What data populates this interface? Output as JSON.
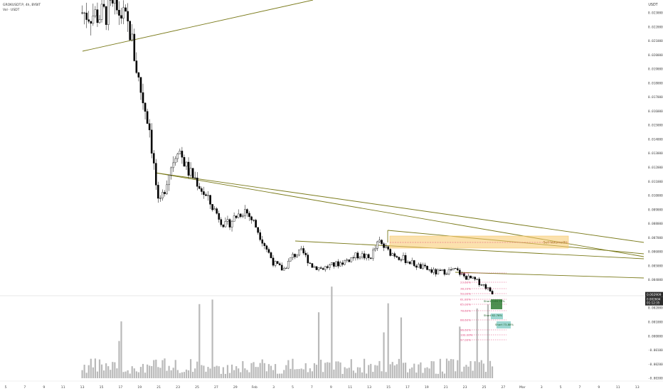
{
  "header": {
    "symbol_line": "GROKUSDT.P, 4h, BYBIT",
    "volume_line": "Vol · USDT"
  },
  "axis": {
    "currency_label": "USDT",
    "price_ticks": [
      "0.023000",
      "0.022000",
      "0.021000",
      "0.020000",
      "0.019000",
      "0.018000",
      "0.017000",
      "0.016000",
      "0.015000",
      "0.014000",
      "0.013000",
      "0.012000",
      "0.011000",
      "0.010000",
      "0.009000",
      "0.008000",
      "0.007000",
      "0.006000",
      "0.005000",
      "0.004000",
      "0.003000",
      "0.002000",
      "0.001000",
      "0.000000",
      "-0.001000",
      "-0.002000",
      "-0.003000"
    ],
    "date_ticks": [
      "5",
      "7",
      "9",
      "11",
      "13",
      "15",
      "17",
      "19",
      "21",
      "23",
      "25",
      "27",
      "29",
      "Feb",
      "3",
      "5",
      "7",
      "9",
      "11",
      "13",
      "15",
      "17",
      "19",
      "21",
      "23",
      "25",
      "27",
      "Mar",
      "3",
      "5",
      "7",
      "9",
      "11",
      "13"
    ],
    "last_price": "0.002909",
    "last_price_sub": "0.002604",
    "last_price_time": "01:12:35"
  },
  "colors": {
    "trendline": "#7a7a1a",
    "candle": "#000000",
    "volume": "#b9b9b9",
    "fib": "#e0457b",
    "box": "#f7c96a",
    "box_label": "#a0781a",
    "target_dark": "#2e7d32",
    "target_light": "#4db6ac"
  },
  "fib_levels": [
    "0.00%",
    "23.60%",
    "38.20%",
    "50.00%",
    "61.80%",
    "65.00%",
    "78.60%",
    "88.60%",
    "96.60%",
    "100.00%",
    "97.00%"
  ],
  "sell_box_label": "Sell Volume(5)",
  "targets": [
    "Short 0-60.78%",
    "Short 62-76%",
    "Short 73-88%"
  ],
  "chart_data": {
    "type": "candlestick",
    "title": "GROKUSDT.P, 4h, BYBIT",
    "ylabel": "USDT",
    "ylim": [
      -0.003,
      0.0235
    ],
    "close_path": {
      "x_dates": [
        "Jan 13",
        "Jan 15",
        "Jan 16",
        "Jan 17",
        "Jan 18",
        "Jan 19",
        "Jan 20",
        "Jan 21",
        "Jan 22",
        "Jan 23",
        "Jan 24",
        "Jan 25",
        "Jan 26",
        "Jan 27",
        "Jan 28",
        "Jan 29",
        "Jan 30",
        "Jan 31",
        "Feb 1",
        "Feb 2",
        "Feb 3",
        "Feb 4",
        "Feb 5",
        "Feb 6",
        "Feb 7",
        "Feb 9",
        "Feb 11",
        "Feb 12",
        "Feb 13",
        "Feb 14",
        "Feb 15",
        "Feb 17",
        "Feb 19",
        "Feb 21",
        "Feb 22",
        "Feb 23",
        "Feb 24",
        "Feb 25"
      ],
      "y": [
        0.023,
        0.0228,
        0.0232,
        0.023,
        0.0217,
        0.0178,
        0.015,
        0.009,
        0.0115,
        0.0135,
        0.0118,
        0.011,
        0.0098,
        0.0088,
        0.0078,
        0.0085,
        0.009,
        0.008,
        0.0066,
        0.0052,
        0.0047,
        0.0057,
        0.006,
        0.005,
        0.0048,
        0.0052,
        0.0058,
        0.0055,
        0.0067,
        0.006,
        0.0057,
        0.005,
        0.0045,
        0.0047,
        0.0042,
        0.004,
        0.0036,
        0.003
      ]
    },
    "last_value": 0.002909
  }
}
